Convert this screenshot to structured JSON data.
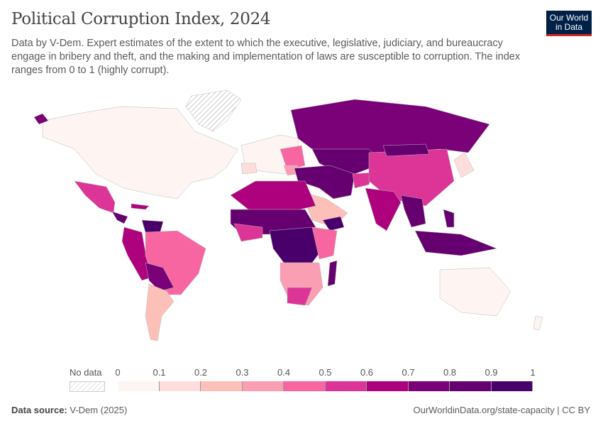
{
  "header": {
    "title": "Political Corruption Index, 2024",
    "subtitle": "Data by V-Dem. Expert estimates of the extent to which the executive, legislative, judiciary, and bureaucracy engage in bribery and theft, and the making and implementation of laws are susceptible to corruption. The index ranges from 0 to 1 (highly corrupt).",
    "logo": "Our World in Data"
  },
  "legend": {
    "no_data_label": "No data",
    "ticks": [
      "0",
      "0.1",
      "0.2",
      "0.3",
      "0.4",
      "0.5",
      "0.6",
      "0.7",
      "0.8",
      "0.9",
      "1"
    ],
    "colors": [
      "#fef4f1",
      "#fddedc",
      "#fcc0b8",
      "#fa9eb4",
      "#f766a1",
      "#dd3497",
      "#ae017e",
      "#7a0177",
      "#660070",
      "#49006a"
    ]
  },
  "footer": {
    "source_label": "Data source:",
    "source": "V-Dem (2025)",
    "link": "OurWorldinData.org/state-capacity | CC BY"
  }
}
